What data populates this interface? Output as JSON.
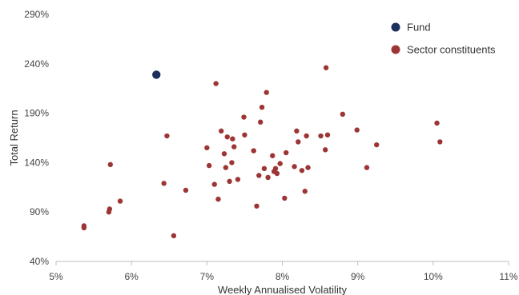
{
  "chart_data": {
    "type": "scatter",
    "xlabel": "Weekly Annualised Volatility",
    "ylabel": "Total Return",
    "xlim": [
      0.05,
      0.11
    ],
    "ylim": [
      0.4,
      2.9
    ],
    "x_ticks": [
      "5%",
      "6%",
      "7%",
      "8%",
      "9%",
      "10%",
      "11%"
    ],
    "y_ticks": [
      "40%",
      "90%",
      "140%",
      "190%",
      "240%",
      "290%"
    ],
    "grid": false,
    "legend_position": "top-right",
    "series": [
      {
        "name": "Fund",
        "color": "#1f2f5c",
        "points": [
          [
            0.0633,
            2.29
          ]
        ]
      },
      {
        "name": "Sector constituents",
        "color": "#9e3535",
        "points": [
          [
            0.0537,
            0.76
          ],
          [
            0.0537,
            0.74
          ],
          [
            0.057,
            0.9
          ],
          [
            0.0571,
            0.93
          ],
          [
            0.0572,
            1.38
          ],
          [
            0.0585,
            1.01
          ],
          [
            0.0643,
            1.19
          ],
          [
            0.0647,
            1.67
          ],
          [
            0.0656,
            0.66
          ],
          [
            0.0672,
            1.12
          ],
          [
            0.07,
            1.55
          ],
          [
            0.0703,
            1.37
          ],
          [
            0.071,
            1.18
          ],
          [
            0.0712,
            2.2
          ],
          [
            0.0715,
            1.03
          ],
          [
            0.0719,
            1.72
          ],
          [
            0.0723,
            1.49
          ],
          [
            0.0725,
            1.35
          ],
          [
            0.0727,
            1.66
          ],
          [
            0.073,
            1.21
          ],
          [
            0.0733,
            1.4
          ],
          [
            0.0734,
            1.64
          ],
          [
            0.0736,
            1.56
          ],
          [
            0.0741,
            1.23
          ],
          [
            0.0749,
            1.86
          ],
          [
            0.075,
            1.68
          ],
          [
            0.0762,
            1.52
          ],
          [
            0.0766,
            0.96
          ],
          [
            0.0769,
            1.27
          ],
          [
            0.0771,
            1.81
          ],
          [
            0.0773,
            1.96
          ],
          [
            0.0776,
            1.34
          ],
          [
            0.0779,
            2.11
          ],
          [
            0.0781,
            1.25
          ],
          [
            0.0787,
            1.47
          ],
          [
            0.0789,
            1.31
          ],
          [
            0.0791,
            1.34
          ],
          [
            0.0793,
            1.29
          ],
          [
            0.0797,
            1.39
          ],
          [
            0.0803,
            1.04
          ],
          [
            0.0805,
            1.5
          ],
          [
            0.0816,
            1.36
          ],
          [
            0.0819,
            1.72
          ],
          [
            0.0821,
            1.61
          ],
          [
            0.0826,
            1.32
          ],
          [
            0.083,
            1.11
          ],
          [
            0.0832,
            1.67
          ],
          [
            0.0834,
            1.35
          ],
          [
            0.0851,
            1.67
          ],
          [
            0.0857,
            1.53
          ],
          [
            0.0858,
            2.36
          ],
          [
            0.086,
            1.68
          ],
          [
            0.088,
            1.89
          ],
          [
            0.0899,
            1.73
          ],
          [
            0.0912,
            1.35
          ],
          [
            0.0925,
            1.58
          ],
          [
            0.1005,
            1.8
          ],
          [
            0.1009,
            1.61
          ]
        ]
      }
    ]
  }
}
